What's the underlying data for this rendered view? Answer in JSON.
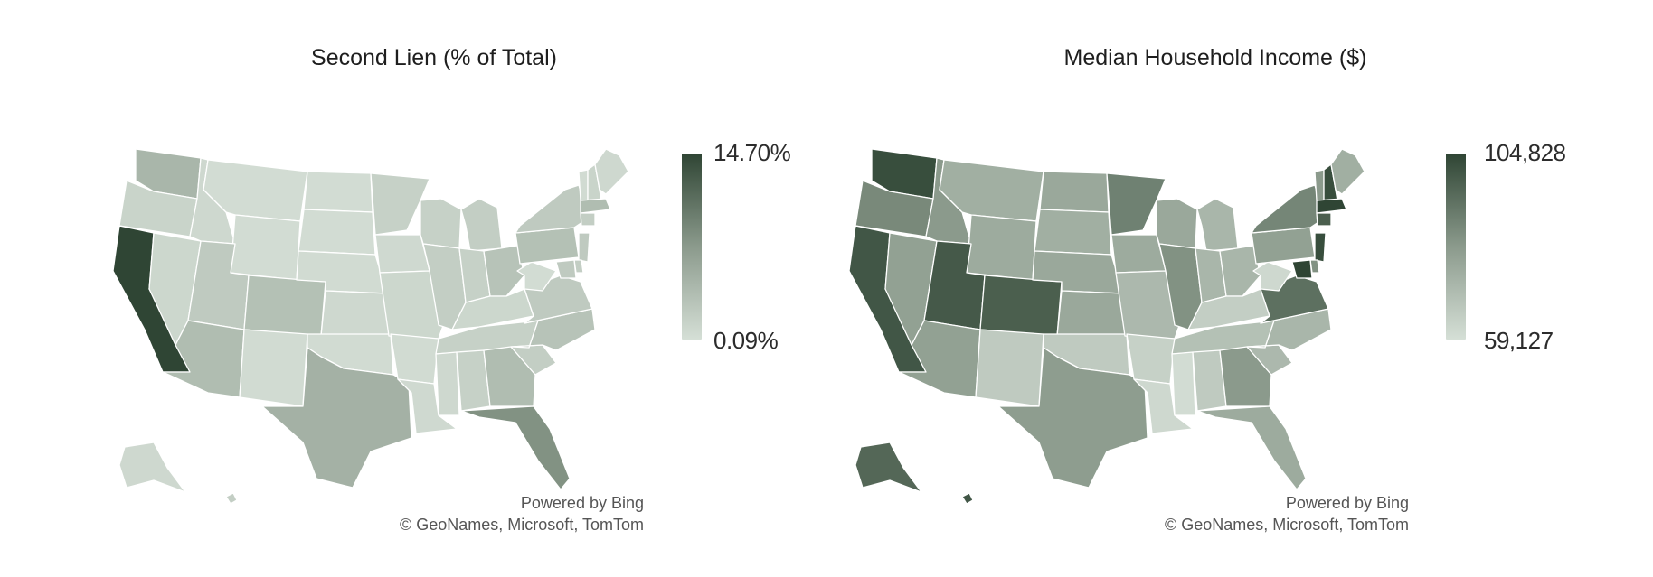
{
  "colors": {
    "scale_low": "#d5dfd6",
    "scale_mid": "#8b9a8c",
    "scale_high": "#2f4534",
    "divider": "#d4d4d4"
  },
  "maps": [
    {
      "title": "Second Lien (% of Total)",
      "legend": {
        "max_label": "14.70%",
        "min_label": "0.09%"
      },
      "attribution": {
        "line1": "Powered by Bing",
        "line2": "© GeoNames, Microsoft, TomTom"
      },
      "values": {
        "WA": 0.3,
        "OR": 0.08,
        "CA": 1.0,
        "NV": 0.06,
        "ID": 0.05,
        "MT": 0.02,
        "WY": 0.02,
        "UT": 0.15,
        "AZ": 0.25,
        "CO": 0.22,
        "NM": 0.03,
        "ND": 0.02,
        "SD": 0.02,
        "NE": 0.03,
        "KS": 0.05,
        "OK": 0.03,
        "TX": 0.33,
        "MN": 0.1,
        "IA": 0.04,
        "MO": 0.06,
        "AR": 0.03,
        "LA": 0.04,
        "WI": 0.1,
        "IL": 0.12,
        "MI": 0.12,
        "IN": 0.1,
        "OH": 0.2,
        "KY": 0.06,
        "TN": 0.1,
        "MS": 0.05,
        "AL": 0.1,
        "GA": 0.25,
        "FL": 0.55,
        "SC": 0.12,
        "NC": 0.2,
        "VA": 0.15,
        "WV": 0.02,
        "PA": 0.22,
        "NY": 0.15,
        "ME": 0.05,
        "NH": 0.08,
        "VT": 0.03,
        "MA": 0.25,
        "CT": 0.12,
        "NJ": 0.15,
        "MD": 0.15,
        "DE": 0.12,
        "AK": 0.05,
        "HI": 0.12
      }
    },
    {
      "title": "Median Household Income ($)",
      "legend": {
        "max_label": "104,828",
        "min_label": "59,127"
      },
      "attribution": {
        "line1": "Powered by Bing",
        "line2": "© GeoNames, Microsoft, TomTom"
      },
      "values": {
        "WA": 0.95,
        "OR": 0.6,
        "CA": 0.9,
        "NV": 0.45,
        "ID": 0.5,
        "MT": 0.35,
        "WY": 0.38,
        "UT": 0.88,
        "AZ": 0.45,
        "CO": 0.85,
        "NM": 0.15,
        "ND": 0.4,
        "SD": 0.35,
        "NE": 0.4,
        "KS": 0.4,
        "OK": 0.15,
        "TX": 0.48,
        "MN": 0.65,
        "IA": 0.38,
        "MO": 0.28,
        "AR": 0.1,
        "LA": 0.05,
        "WI": 0.4,
        "IL": 0.55,
        "MI": 0.3,
        "IN": 0.3,
        "OH": 0.3,
        "KY": 0.12,
        "TN": 0.22,
        "MS": 0.02,
        "AL": 0.15,
        "GA": 0.5,
        "FL": 0.38,
        "SC": 0.28,
        "NC": 0.3,
        "VA": 0.75,
        "WV": 0.05,
        "PA": 0.45,
        "NY": 0.62,
        "ME": 0.35,
        "NH": 0.95,
        "VT": 0.5,
        "MA": 1.0,
        "CT": 0.85,
        "NJ": 0.95,
        "MD": 1.0,
        "DE": 0.55,
        "AK": 0.8,
        "HI": 0.9
      }
    }
  ]
}
